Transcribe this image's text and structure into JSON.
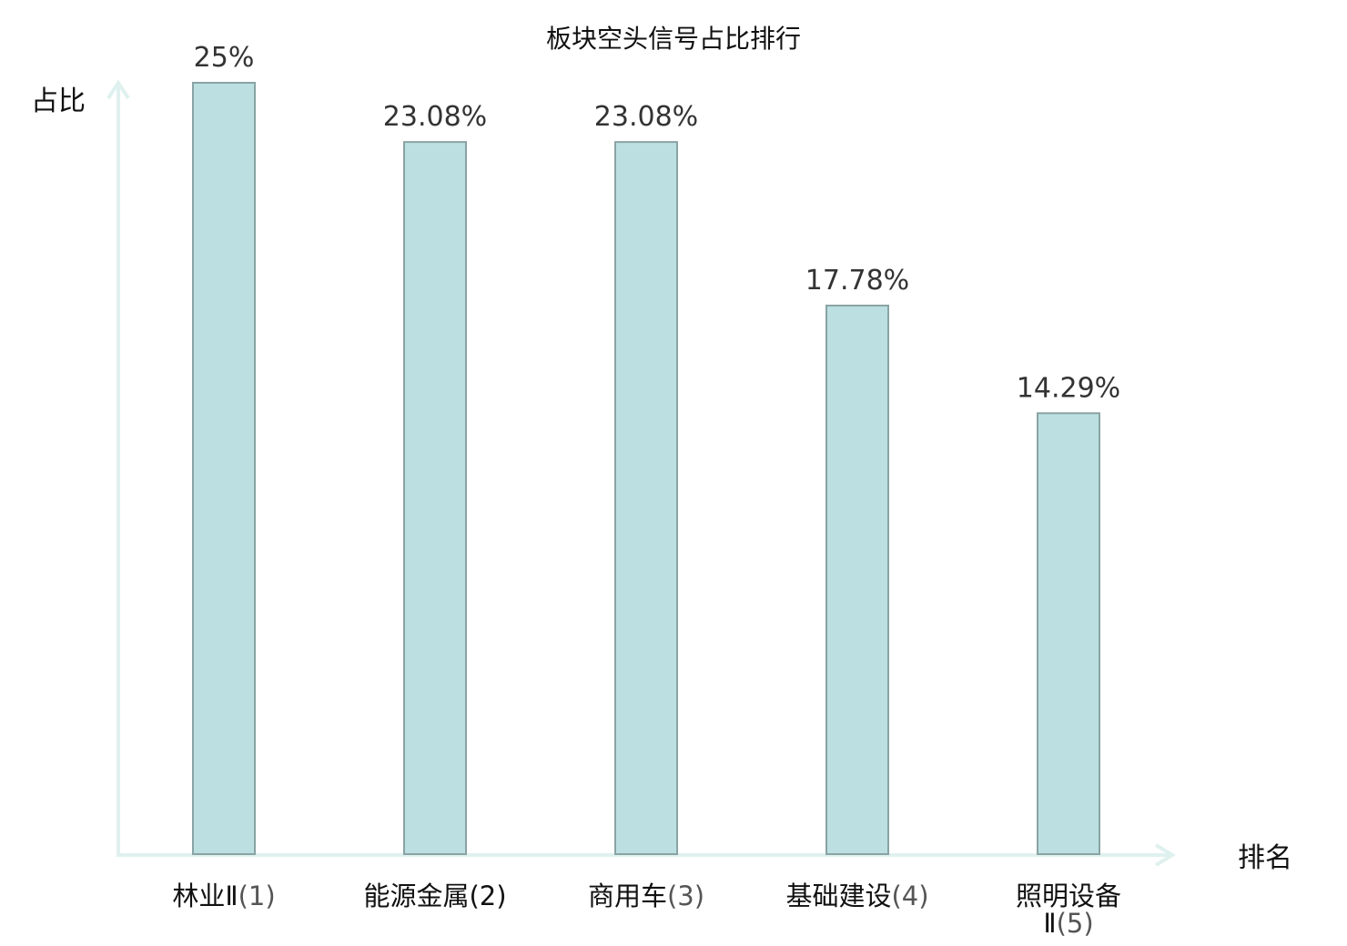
{
  "chart_data": {
    "type": "bar",
    "title": "板块空头信号占比排行",
    "ylabel": "占比",
    "xlabel": "排名",
    "ylim": [
      0,
      25
    ],
    "grid": false,
    "categories": [
      {
        "name": "林业Ⅱ",
        "rank": "(1)",
        "highlight": false
      },
      {
        "name": "能源金属",
        "rank": "(2)",
        "highlight": true
      },
      {
        "name": "商用车",
        "rank": "(3)",
        "highlight": false
      },
      {
        "name": "基础建设",
        "rank": "(4)",
        "highlight": false
      },
      {
        "name": "照明设备",
        "name_line2": "Ⅱ",
        "rank": "(5)",
        "highlight": false
      }
    ],
    "values": [
      25,
      23.08,
      23.08,
      17.78,
      14.29
    ],
    "value_labels": [
      "25%",
      "23.08%",
      "23.08%",
      "17.78%",
      "14.29%"
    ],
    "colors": {
      "bar_fill": "#bce0e1",
      "bar_stroke": "#8aa3a4",
      "axis": "#dff1ee",
      "highlight_text": "#dd1111"
    }
  }
}
